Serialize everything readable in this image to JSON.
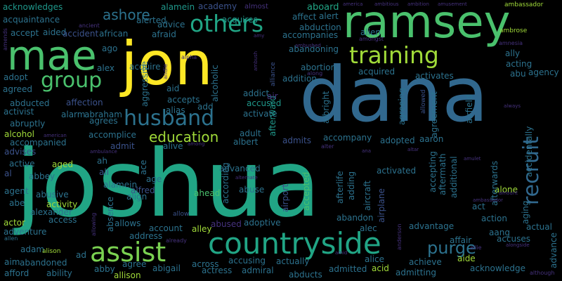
{
  "palette": {
    "yellow": "#fde725",
    "lime": "#a0da39",
    "lgreen": "#7ad151",
    "green": "#4ac16d",
    "teal": "#21a585",
    "cyan": "#1f988b",
    "blue": "#2c728e",
    "steel": "#31688e",
    "indigo": "#3b528b",
    "navy": "#404688",
    "purple": "#46327e",
    "dpurple": "#440154"
  },
  "words": [
    {
      "id": "joshua",
      "text": "joshua",
      "color": "teal"
    },
    {
      "id": "dana",
      "text": "dana",
      "color": "steel"
    },
    {
      "id": "jon",
      "text": "jon",
      "color": "yellow"
    },
    {
      "id": "ramsey",
      "text": "ramsey",
      "color": "green"
    },
    {
      "id": "mae",
      "text": "mae",
      "color": "green"
    },
    {
      "id": "countryside",
      "text": "countryside",
      "color": "teal"
    },
    {
      "id": "assist",
      "text": "assist",
      "color": "lgreen"
    },
    {
      "id": "husband",
      "text": "husband",
      "color": "blue"
    },
    {
      "id": "training",
      "text": "training",
      "color": "lime"
    },
    {
      "id": "others",
      "text": "others",
      "color": "teal"
    },
    {
      "id": "recruit",
      "text": "recruit",
      "color": "steel"
    },
    {
      "id": "group",
      "text": "group",
      "color": "green"
    },
    {
      "id": "education",
      "text": "education",
      "color": "lime"
    },
    {
      "id": "purge",
      "text": "purge",
      "color": "blue"
    },
    {
      "id": "ashore",
      "text": "ashore",
      "color": "blue"
    },
    {
      "id": "acknowledges",
      "text": "acknowledges",
      "color": "cyan"
    },
    {
      "id": "alamein",
      "text": "alamein",
      "color": "cyan"
    },
    {
      "id": "academy",
      "text": "academy",
      "color": "indigo"
    },
    {
      "id": "almost",
      "text": "almost",
      "color": "purple"
    },
    {
      "id": "acquires",
      "text": "acquires",
      "color": "cyan"
    },
    {
      "id": "aboard",
      "text": "aboard",
      "color": "teal"
    },
    {
      "id": "america",
      "text": "america",
      "color": "purple"
    },
    {
      "id": "ambitious",
      "text": "ambitious",
      "color": "purple"
    },
    {
      "id": "ambition",
      "text": "ambition",
      "color": "purple"
    },
    {
      "id": "amusement",
      "text": "amusement",
      "color": "purple"
    },
    {
      "id": "ambassador",
      "text": "ambassador",
      "color": "lime"
    },
    {
      "id": "acquaintance",
      "text": "acquaintance",
      "color": "blue"
    },
    {
      "id": "alerted",
      "text": "alerted",
      "color": "blue"
    },
    {
      "id": "affect",
      "text": "affect",
      "color": "blue"
    },
    {
      "id": "alert",
      "text": "alert",
      "color": "blue"
    },
    {
      "id": "advice",
      "text": "advice",
      "color": "blue"
    },
    {
      "id": "aided",
      "text": "aided",
      "color": "blue"
    },
    {
      "id": "ancient",
      "text": "ancient",
      "color": "purple"
    },
    {
      "id": "abduction",
      "text": "abduction",
      "color": "blue"
    },
    {
      "id": "alien",
      "text": "alien",
      "color": "blue"
    },
    {
      "id": "accept",
      "text": "accept",
      "color": "blue"
    },
    {
      "id": "accident",
      "text": "accident",
      "color": "indigo"
    },
    {
      "id": "african",
      "text": "african",
      "color": "blue"
    },
    {
      "id": "afraid",
      "text": "afraid",
      "color": "blue"
    },
    {
      "id": "accompanies",
      "text": "accompanies",
      "color": "blue"
    },
    {
      "id": "amongst",
      "text": "amongst",
      "color": "purple"
    },
    {
      "id": "ambrose",
      "text": "ambrose",
      "color": "lime"
    },
    {
      "id": "amy",
      "text": "amy",
      "color": "purple"
    },
    {
      "id": "amends",
      "text": "amends",
      "color": "purple"
    },
    {
      "id": "ago",
      "text": "ago",
      "color": "blue"
    },
    {
      "id": "abandoning",
      "text": "abandoning",
      "color": "blue"
    },
    {
      "id": "amnesia",
      "text": "amnesia",
      "color": "purple"
    },
    {
      "id": "acting",
      "text": "acting",
      "color": "blue"
    },
    {
      "id": "ally",
      "text": "ally",
      "color": "blue"
    },
    {
      "id": "alex",
      "text": "alex",
      "color": "blue"
    },
    {
      "id": "alpha",
      "text": "alpha",
      "color": "purple"
    },
    {
      "id": "acquire",
      "text": "acquire",
      "color": "blue"
    },
    {
      "id": "abortion",
      "text": "abortion",
      "color": "blue"
    },
    {
      "id": "acquired",
      "text": "acquired",
      "color": "blue"
    },
    {
      "id": "activates",
      "text": "activates",
      "color": "blue"
    },
    {
      "id": "abu",
      "text": "abu",
      "color": "blue"
    },
    {
      "id": "agency",
      "text": "agency",
      "color": "blue"
    },
    {
      "id": "adopt",
      "text": "adopt",
      "color": "blue"
    },
    {
      "id": "addition",
      "text": "addition",
      "color": "blue"
    },
    {
      "id": "along",
      "text": "along",
      "color": "purple"
    },
    {
      "id": "agreed",
      "text": "agreed",
      "color": "blue"
    },
    {
      "id": "aid",
      "text": "aid",
      "color": "blue"
    },
    {
      "id": "addict",
      "text": "addict",
      "color": "blue"
    },
    {
      "id": "affection",
      "text": "affection",
      "color": "indigo"
    },
    {
      "id": "accepts",
      "text": "accepts",
      "color": "blue"
    },
    {
      "id": "abducted",
      "text": "abducted",
      "color": "blue"
    },
    {
      "id": "activist",
      "text": "activist",
      "color": "blue"
    },
    {
      "id": "alarm",
      "text": "alarm",
      "color": "blue"
    },
    {
      "id": "abraham",
      "text": "abraham",
      "color": "blue"
    },
    {
      "id": "add",
      "text": "add",
      "color": "blue"
    },
    {
      "id": "activate",
      "text": "activate",
      "color": "blue"
    },
    {
      "id": "accused",
      "text": "accused",
      "color": "cyan"
    },
    {
      "id": "afterward",
      "text": "afterward",
      "color": "cyan"
    },
    {
      "id": "albright",
      "text": "albright",
      "color": "blue"
    },
    {
      "id": "agreeing",
      "text": "agreeing",
      "color": "blue"
    },
    {
      "id": "agreement",
      "text": "agreement",
      "color": "blue"
    },
    {
      "id": "allowed",
      "text": "allowed",
      "color": "indigo"
    },
    {
      "id": "airfield",
      "text": "airfield",
      "color": "blue"
    },
    {
      "id": "accidentally",
      "text": "accidentally",
      "color": "blue"
    },
    {
      "id": "always",
      "text": "always",
      "color": "purple"
    },
    {
      "id": "abruptly",
      "text": "abruptly",
      "color": "blue"
    },
    {
      "id": "agrees",
      "text": "agrees",
      "color": "blue"
    },
    {
      "id": "alcohol",
      "text": "alcohol",
      "color": "lime"
    },
    {
      "id": "accomplice",
      "text": "accomplice",
      "color": "blue"
    },
    {
      "id": "american",
      "text": "american",
      "color": "purple"
    },
    {
      "id": "adult",
      "text": "adult",
      "color": "blue"
    },
    {
      "id": "albert",
      "text": "albert",
      "color": "blue"
    },
    {
      "id": "admits",
      "text": "admits",
      "color": "indigo"
    },
    {
      "id": "accompany",
      "text": "accompany",
      "color": "blue"
    },
    {
      "id": "adopted",
      "text": "adopted",
      "color": "blue"
    },
    {
      "id": "aaron",
      "text": "aaron",
      "color": "blue"
    },
    {
      "id": "accompanied",
      "text": "accompanied",
      "color": "blue"
    },
    {
      "id": "admit",
      "text": "admit",
      "color": "indigo"
    },
    {
      "id": "alive",
      "text": "alive",
      "color": "blue"
    },
    {
      "id": "among",
      "text": "among",
      "color": "purple"
    },
    {
      "id": "advises",
      "text": "advises",
      "color": "indigo"
    },
    {
      "id": "ambulance",
      "text": "ambulance",
      "color": "purple"
    },
    {
      "id": "active",
      "text": "active",
      "color": "blue"
    },
    {
      "id": "aged",
      "text": "aged",
      "color": "lime"
    },
    {
      "id": "ah",
      "text": "ah",
      "color": "blue"
    },
    {
      "id": "ace",
      "text": "ace",
      "color": "blue"
    },
    {
      "id": "age",
      "text": "age",
      "color": "blue"
    },
    {
      "id": "advanced",
      "text": "advanced",
      "color": "blue"
    },
    {
      "id": "activated",
      "text": "activated",
      "color": "blue"
    },
    {
      "id": "al",
      "text": "al",
      "color": "indigo"
    },
    {
      "id": "abbey",
      "text": "abbey",
      "color": "blue"
    },
    {
      "id": "ali",
      "text": "ali",
      "color": "indigo"
    },
    {
      "id": "agent",
      "text": "agent",
      "color": "blue"
    },
    {
      "id": "alamein2",
      "text": "alamein",
      "color": "blue"
    },
    {
      "id": "alfred",
      "text": "alfred",
      "color": "indigo"
    },
    {
      "id": "ahead",
      "text": "ahead",
      "color": "green"
    },
    {
      "id": "abusive",
      "text": "abusive",
      "color": "blue"
    },
    {
      "id": "align",
      "text": "align",
      "color": "blue"
    },
    {
      "id": "abe",
      "text": "abe",
      "color": "blue"
    },
    {
      "id": "activity",
      "text": "activity",
      "color": "lime"
    },
    {
      "id": "alexander",
      "text": "alexander",
      "color": "blue"
    },
    {
      "id": "alone",
      "text": "alone",
      "color": "lime"
    },
    {
      "id": "act",
      "text": "act",
      "color": "blue"
    },
    {
      "id": "allow",
      "text": "allow",
      "color": "indigo"
    },
    {
      "id": "actor",
      "text": "actor",
      "color": "lime"
    },
    {
      "id": "access",
      "text": "access",
      "color": "blue"
    },
    {
      "id": "abused",
      "text": "abused",
      "color": "purple"
    },
    {
      "id": "adoptive",
      "text": "adoptive",
      "color": "blue"
    },
    {
      "id": "adventure",
      "text": "adventure",
      "color": "blue"
    },
    {
      "id": "allows",
      "text": "allows",
      "color": "blue"
    },
    {
      "id": "abandon",
      "text": "abandon",
      "color": "blue"
    },
    {
      "id": "advantage",
      "text": "advantage",
      "color": "blue"
    },
    {
      "id": "action",
      "text": "action",
      "color": "blue"
    },
    {
      "id": "actual",
      "text": "actual",
      "color": "blue"
    },
    {
      "id": "allen",
      "text": "allen",
      "color": "blue"
    },
    {
      "id": "account",
      "text": "account",
      "color": "blue"
    },
    {
      "id": "alley",
      "text": "alley",
      "color": "lime"
    },
    {
      "id": "alec",
      "text": "alec",
      "color": "blue"
    },
    {
      "id": "aang",
      "text": "aang",
      "color": "blue"
    },
    {
      "id": "accuses",
      "text": "accuses",
      "color": "blue"
    },
    {
      "id": "affair",
      "text": "affair",
      "color": "blue"
    },
    {
      "id": "adam",
      "text": "adam",
      "color": "blue"
    },
    {
      "id": "alison",
      "text": "alison",
      "color": "lime"
    },
    {
      "id": "address",
      "text": "address",
      "color": "blue"
    },
    {
      "id": "allie",
      "text": "allie",
      "color": "purple"
    },
    {
      "id": "aide",
      "text": "aide",
      "color": "lime"
    },
    {
      "id": "advance",
      "text": "advance",
      "color": "blue"
    },
    {
      "id": "aim",
      "text": "aim",
      "color": "blue"
    },
    {
      "id": "abandoned",
      "text": "abandoned",
      "color": "blue"
    },
    {
      "id": "accusing",
      "text": "accusing",
      "color": "blue"
    },
    {
      "id": "actually",
      "text": "actually",
      "color": "blue"
    },
    {
      "id": "alice",
      "text": "alice",
      "color": "blue"
    },
    {
      "id": "anderson",
      "text": "anderson",
      "color": "purple"
    },
    {
      "id": "achieve",
      "text": "achieve",
      "color": "blue"
    },
    {
      "id": "acknowledge",
      "text": "acknowledge",
      "color": "blue"
    },
    {
      "id": "afford",
      "text": "afford",
      "color": "blue"
    },
    {
      "id": "ability",
      "text": "ability",
      "color": "blue"
    },
    {
      "id": "abby",
      "text": "abby",
      "color": "blue"
    },
    {
      "id": "agree",
      "text": "agree",
      "color": "blue"
    },
    {
      "id": "abigail",
      "text": "abigail",
      "color": "blue"
    },
    {
      "id": "across",
      "text": "across",
      "color": "blue"
    },
    {
      "id": "actress",
      "text": "actress",
      "color": "blue"
    },
    {
      "id": "admiral",
      "text": "admiral",
      "color": "blue"
    },
    {
      "id": "abducts",
      "text": "abducts",
      "color": "blue"
    },
    {
      "id": "admitted",
      "text": "admitted",
      "color": "blue"
    },
    {
      "id": "acid",
      "text": "acid",
      "color": "lime"
    },
    {
      "id": "admitting",
      "text": "admitting",
      "color": "blue"
    },
    {
      "id": "allison",
      "text": "allison",
      "color": "lime"
    },
    {
      "id": "although",
      "text": "although",
      "color": "purple"
    },
    {
      "id": "ad",
      "text": "ad",
      "color": "blue"
    },
    {
      "id": "ambush",
      "text": "ambush",
      "color": "purple"
    },
    {
      "id": "andie",
      "text": "andie",
      "color": "purple"
    },
    {
      "id": "aggressive",
      "text": "aggressive",
      "color": "blue"
    },
    {
      "id": "alcoholic",
      "text": "alcoholic",
      "color": "blue"
    },
    {
      "id": "alliance",
      "text": "alliance",
      "color": "indigo"
    },
    {
      "id": "alias",
      "text": "alias",
      "color": "blue"
    },
    {
      "id": "air",
      "text": "air",
      "color": "purple"
    },
    {
      "id": "afterlife",
      "text": "afterlife",
      "color": "blue"
    },
    {
      "id": "airport",
      "text": "airport",
      "color": "indigo"
    },
    {
      "id": "abuse",
      "text": "abuse",
      "color": "blue"
    },
    {
      "id": "accepted",
      "text": "accepted",
      "color": "green"
    },
    {
      "id": "according",
      "text": "according",
      "color": "blue"
    },
    {
      "id": "adding",
      "text": "adding",
      "color": "blue"
    },
    {
      "id": "aircraft",
      "text": "aircraft",
      "color": "blue"
    },
    {
      "id": "airplane",
      "text": "airplane",
      "color": "indigo"
    },
    {
      "id": "accepting",
      "text": "accepting",
      "color": "blue"
    },
    {
      "id": "aftermath",
      "text": "aftermath",
      "color": "blue"
    },
    {
      "id": "additional",
      "text": "additional",
      "color": "blue"
    },
    {
      "id": "afterwards",
      "text": "afterwards",
      "color": "blue"
    },
    {
      "id": "aging",
      "text": "aging",
      "color": "blue"
    },
    {
      "id": "absence",
      "text": "absence",
      "color": "blue"
    },
    {
      "id": "allowing",
      "text": "allowing",
      "color": "purple"
    },
    {
      "id": "already",
      "text": "already",
      "color": "purple"
    },
    {
      "id": "alter",
      "text": "alter",
      "color": "purple"
    },
    {
      "id": "ana",
      "text": "ana",
      "color": "purple"
    },
    {
      "id": "altar",
      "text": "altar",
      "color": "purple"
    },
    {
      "id": "amulet",
      "text": "amulet",
      "color": "purple"
    },
    {
      "id": "alternate",
      "text": "alternate",
      "color": "purple"
    },
    {
      "id": "amount",
      "text": "amount",
      "color": "purple"
    },
    {
      "id": "alongside",
      "text": "alongside",
      "color": "purple"
    },
    {
      "id": "amid",
      "text": "amid",
      "color": "purple"
    },
    {
      "id": "ambassador2",
      "text": "ambassador",
      "color": "purple"
    },
    {
      "id": "ambushed",
      "text": "ambushed",
      "color": "purple"
    }
  ]
}
